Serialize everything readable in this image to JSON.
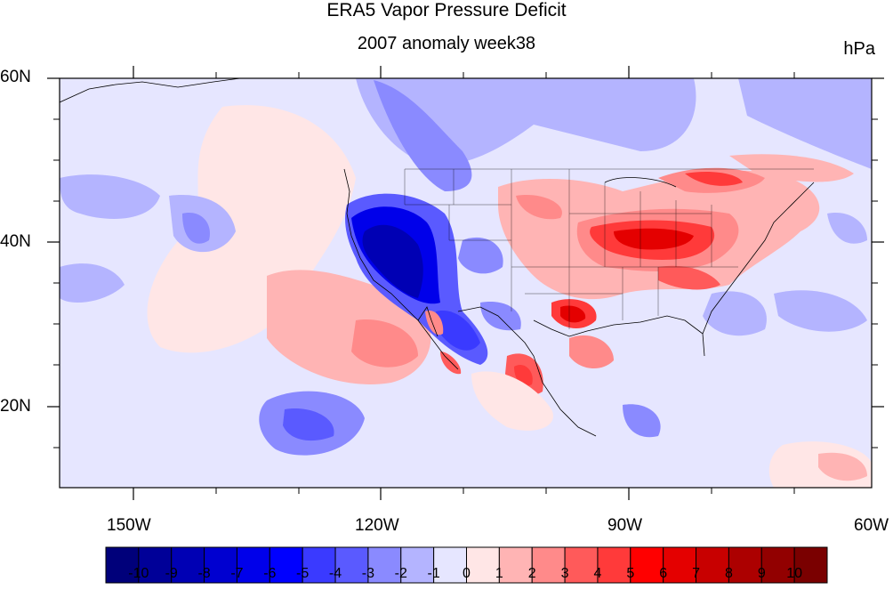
{
  "title": "ERA5 Vapor Pressure Deficit",
  "subtitle": "2007 anomaly week38",
  "units": "hPa",
  "map": {
    "lat_labels": [
      "60N",
      "40N",
      "20N"
    ],
    "lon_labels": [
      "150W",
      "120W",
      "90W",
      "60W"
    ],
    "extent": {
      "lon": [
        -159,
        -61
      ],
      "lat": [
        10,
        60
      ]
    }
  },
  "colorbar": {
    "labels": [
      "-10",
      "-9",
      "-8",
      "-7",
      "-6",
      "-5",
      "-4",
      "-3",
      "-2",
      "-1",
      "0",
      "1",
      "2",
      "3",
      "4",
      "5",
      "6",
      "7",
      "8",
      "9",
      "10"
    ],
    "colors": [
      "#00007a",
      "#000098",
      "#0000b4",
      "#0000d0",
      "#0000ea",
      "#0000ff",
      "#3a3aff",
      "#5a5aff",
      "#8a8aff",
      "#b4b4ff",
      "#e6e6ff",
      "#ffe6e6",
      "#ffb4b4",
      "#ff8a8a",
      "#ff5a5a",
      "#ff3a3a",
      "#ff0000",
      "#e40000",
      "#c80000",
      "#ac0000",
      "#920000",
      "#7a0000"
    ]
  }
}
